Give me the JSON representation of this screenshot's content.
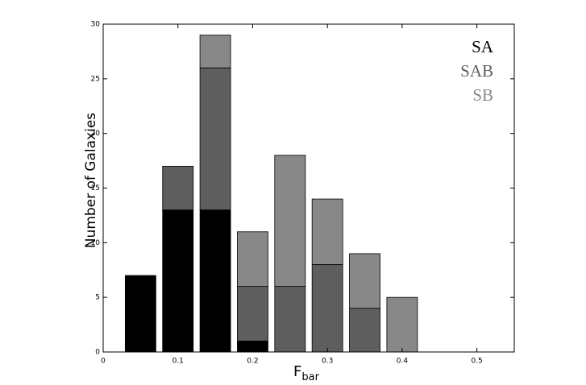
{
  "chart_data": {
    "type": "stacked-histogram",
    "xlabel": {
      "text": "F",
      "subscript": "bar"
    },
    "ylabel": "Number of Galaxies",
    "bins": [
      0.025,
      0.075,
      0.125,
      0.175,
      0.225,
      0.275,
      0.325,
      0.375,
      0.425
    ],
    "series": [
      {
        "name": "SA",
        "color": "#000000",
        "values": [
          7,
          13,
          13,
          1,
          0,
          0,
          0,
          0
        ]
      },
      {
        "name": "SAB",
        "color": "#5e5e5e",
        "values": [
          0,
          4,
          13,
          5,
          6,
          8,
          4,
          0
        ]
      },
      {
        "name": "SB",
        "color": "#888888",
        "values": [
          0,
          0,
          3,
          5,
          12,
          6,
          5,
          5
        ]
      }
    ],
    "xlim": [
      0,
      0.55
    ],
    "xticks": [
      0,
      0.1,
      0.2,
      0.3,
      0.4,
      0.5
    ],
    "ylim": [
      0,
      30
    ],
    "yticks": [
      0,
      5,
      10,
      15,
      20,
      25,
      30
    ],
    "legend": "upper-right"
  }
}
